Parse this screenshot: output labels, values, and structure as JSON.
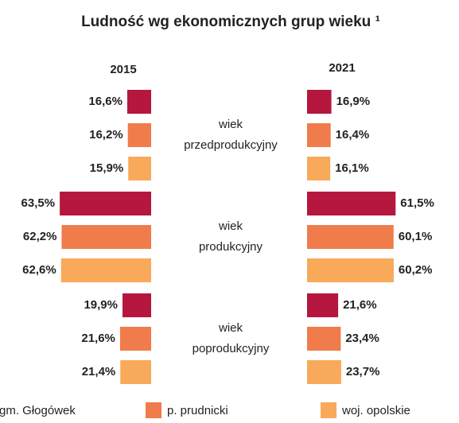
{
  "chart_data": {
    "type": "butterfly-bar",
    "title": "Ludność wg ekonomicznych grup wieku ¹",
    "panels": [
      "2015",
      "2021"
    ],
    "categories": [
      [
        "wiek",
        "przedprodukcyjny"
      ],
      [
        "wiek",
        "produkcyjny"
      ],
      [
        "wiek",
        "poprodukcyjny"
      ]
    ],
    "xlim": [
      0,
      105
    ],
    "series": [
      {
        "name": "gm. Głogówek",
        "color": "#b5173f",
        "values": [
          [
            16.6,
            63.5,
            19.9
          ],
          [
            16.9,
            61.5,
            21.6
          ]
        ],
        "value_labels": [
          [
            "16,6%",
            "63,5%",
            "19,9%"
          ],
          [
            "16,9%",
            "61,5%",
            "21,6%"
          ]
        ]
      },
      {
        "name": "p. prudnicki",
        "color": "#f07b4b",
        "values": [
          [
            16.2,
            62.2,
            21.6
          ],
          [
            16.4,
            60.1,
            23.4
          ]
        ],
        "value_labels": [
          [
            "16,2%",
            "62,2%",
            "21,6%"
          ],
          [
            "16,4%",
            "60,1%",
            "23,4%"
          ]
        ]
      },
      {
        "name": "woj. opolskie",
        "color": "#f9a95a",
        "values": [
          [
            15.9,
            62.6,
            21.4
          ],
          [
            16.1,
            60.2,
            23.7
          ]
        ],
        "value_labels": [
          [
            "15,9%",
            "62,6%",
            "21,4%"
          ],
          [
            "16,1%",
            "60,2%",
            "23,7%"
          ]
        ]
      }
    ]
  }
}
